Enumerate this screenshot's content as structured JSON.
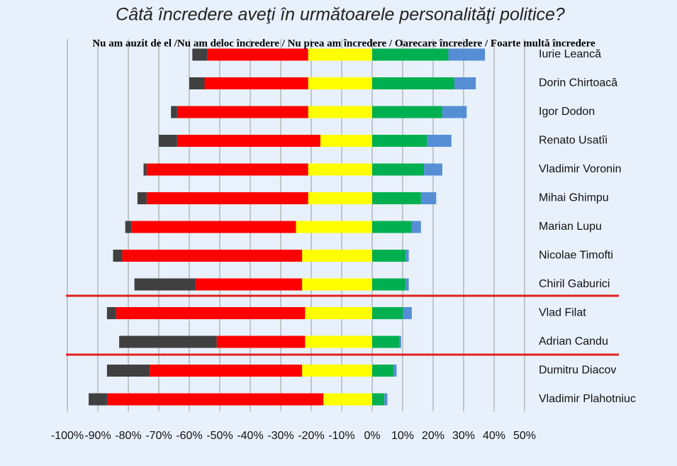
{
  "chart_data": {
    "type": "diverging-bar",
    "title": "Câtă încredere aveţi în următoarele personalităţi politice?",
    "subtitle": "Nu am auzit de el /Nu am deloc încredere / Nu prea am încredere / Oarecare încredere / Foarte multă încredere",
    "categories": [
      "Iurie Leancă",
      "Dorin Chirtoacă",
      "Igor Dodon",
      "Renato Usatîi",
      "Vladimir Voronin",
      "Mihai Ghimpu",
      "Marian Lupu",
      "Nicolae Timofti",
      "Chiril Gaburici",
      "Vlad Filat",
      "Adrian Candu",
      "Dumitru Diacov",
      "Vladimir Plahotniuc"
    ],
    "series": [
      {
        "color": "#404040",
        "values": [
          -5,
          -5,
          -2,
          -6,
          -1,
          -3,
          -2,
          -3,
          -20,
          -3,
          -32,
          -14,
          -6
        ]
      },
      {
        "color": "#ff0000",
        "values": [
          -33,
          -34,
          -43,
          -47,
          -53,
          -53,
          -54,
          -59,
          -35,
          -62,
          -29,
          -50,
          -71
        ]
      },
      {
        "color": "#ffff00",
        "values": [
          -21,
          -21,
          -21,
          -17,
          -21,
          -21,
          -25,
          -23,
          -23,
          -22,
          -22,
          -23,
          -16
        ]
      },
      {
        "color": "#00b050",
        "values": [
          25,
          27,
          23,
          18,
          17,
          16,
          13,
          11,
          11,
          10,
          9,
          7,
          4
        ]
      },
      {
        "color": "#558ed5",
        "values": [
          12,
          7,
          8,
          8,
          6,
          5,
          3,
          1,
          1,
          3,
          0.5,
          1,
          1
        ]
      }
    ],
    "xlim": [
      -100,
      50
    ],
    "xticks": [
      {
        "value": -100,
        "label": "-100%"
      },
      {
        "value": -90,
        "label": "-90%"
      },
      {
        "value": -80,
        "label": "-80%"
      },
      {
        "value": -70,
        "label": "-70%"
      },
      {
        "value": -60,
        "label": "-60%"
      },
      {
        "value": -50,
        "label": "-50%"
      },
      {
        "value": -40,
        "label": "-40%"
      },
      {
        "value": -30,
        "label": "-30%"
      },
      {
        "value": -20,
        "label": "-20%"
      },
      {
        "value": -10,
        "label": "-10%"
      },
      {
        "value": 0,
        "label": "0%"
      },
      {
        "value": 10,
        "label": "10%"
      },
      {
        "value": 20,
        "label": "20%"
      },
      {
        "value": 30,
        "label": "30%"
      },
      {
        "value": 40,
        "label": "40%"
      },
      {
        "value": 50,
        "label": "50%"
      }
    ],
    "grid": true
  }
}
